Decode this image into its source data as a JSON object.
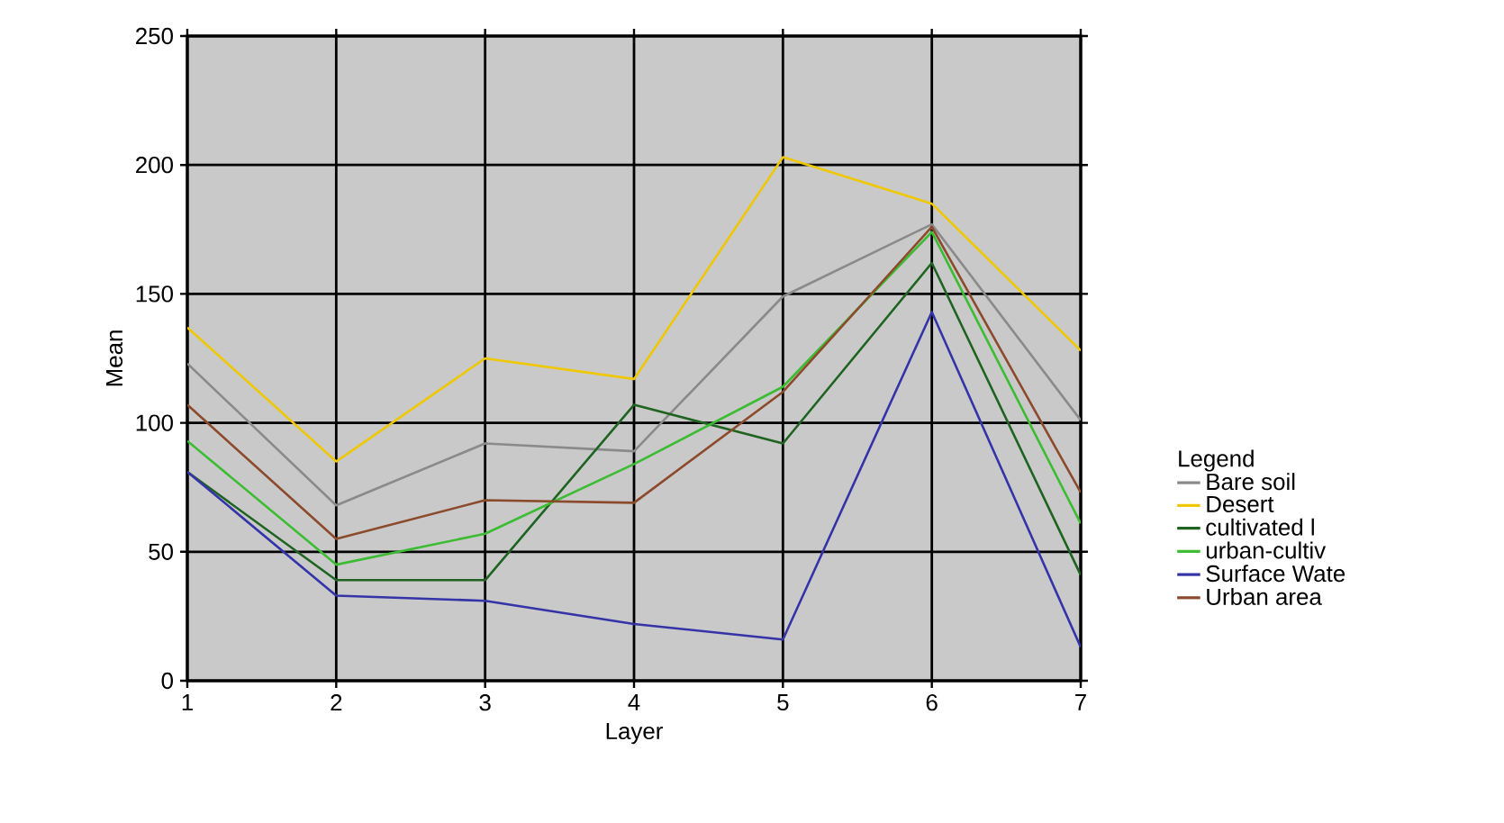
{
  "chart_data": {
    "type": "line",
    "xlabel": "Layer",
    "ylabel": "Mean",
    "legend_title": "Legend",
    "x": [
      1,
      2,
      3,
      4,
      5,
      6,
      7
    ],
    "series": [
      {
        "name": "Bare soil",
        "color": "#8a8a8a",
        "values": [
          123,
          68,
          92,
          89,
          149,
          177,
          101
        ]
      },
      {
        "name": "Desert",
        "color": "#f0c800",
        "values": [
          137,
          85,
          125,
          117,
          203,
          185,
          128
        ]
      },
      {
        "name": "cultivated l",
        "color": "#1e6420",
        "values": [
          81,
          39,
          39,
          107,
          92,
          162,
          41
        ]
      },
      {
        "name": "urban-cultiv",
        "color": "#3cbc32",
        "values": [
          93,
          45,
          57,
          84,
          114,
          174,
          61
        ]
      },
      {
        "name": "Surface Wate",
        "color": "#3434a8",
        "values": [
          81,
          33,
          31,
          22,
          16,
          143,
          13
        ]
      },
      {
        "name": "Urban area",
        "color": "#8c4a2c",
        "values": [
          107,
          55,
          70,
          69,
          112,
          176,
          73
        ]
      }
    ],
    "xlim": [
      1,
      7
    ],
    "ylim": [
      0,
      250
    ],
    "xticks": [
      1,
      2,
      3,
      4,
      5,
      6,
      7
    ],
    "yticks": [
      0,
      50,
      100,
      150,
      200,
      250
    ],
    "grid": true,
    "legend": "right",
    "marker": "none",
    "line_style": "solid"
  }
}
